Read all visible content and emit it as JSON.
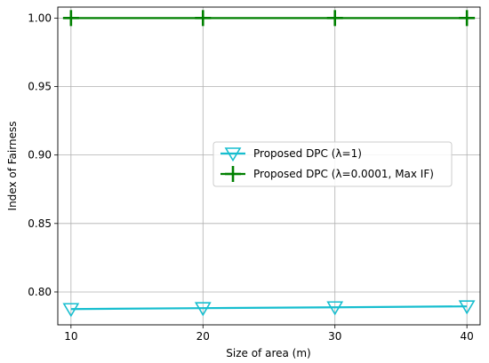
{
  "chart_data": {
    "type": "line",
    "title": "",
    "xlabel": "Size of area (m)",
    "ylabel": "Index of Fairness",
    "x": [
      10,
      20,
      30,
      40
    ],
    "xlim": [
      9,
      41
    ],
    "ylim": [
      0.776,
      1.008
    ],
    "xticks": [
      10,
      20,
      30,
      40
    ],
    "yticks": [
      0.8,
      0.85,
      0.9,
      0.95,
      1.0
    ],
    "ytick_labels": [
      "0.80",
      "0.85",
      "0.90",
      "0.95",
      "1.00"
    ],
    "grid": true,
    "legend_position": "center-right",
    "series": [
      {
        "name": "Proposed DPC (λ=1)",
        "values": [
          0.7875,
          0.7882,
          0.7888,
          0.7895
        ],
        "color": "#17becf",
        "marker": "triangle-down-open"
      },
      {
        "name": "Proposed DPC (λ=0.0001, Max IF)",
        "values": [
          1.0,
          1.0,
          1.0,
          1.0
        ],
        "color": "#008000",
        "marker": "plus"
      }
    ]
  }
}
